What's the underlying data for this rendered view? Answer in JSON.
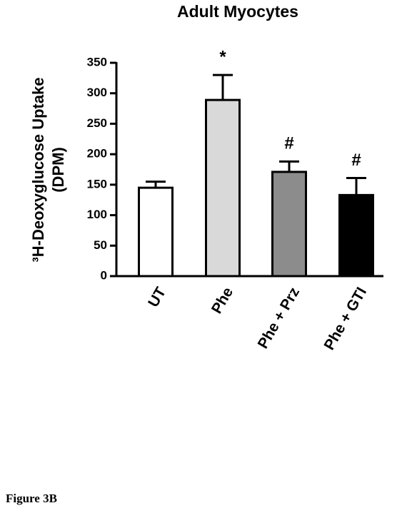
{
  "chart_data": {
    "type": "bar",
    "title": "Adult Myocytes",
    "y_label": [
      "³H-Deoxyglucose  Uptake",
      "(DPM)"
    ],
    "categories": [
      "UT",
      "Phe",
      "Phe + Prz",
      "Phe + GTI"
    ],
    "values": [
      145,
      289,
      171,
      133
    ],
    "errors": [
      10,
      41,
      17,
      28
    ],
    "annotations": [
      null,
      "*",
      "#",
      "#"
    ],
    "colors": [
      "#ffffff",
      "#d9d9d9",
      "#8c8c8c",
      "#000000"
    ],
    "edgecolor": "#000000",
    "ylim": [
      0,
      350
    ],
    "yticks": [
      0,
      50,
      100,
      150,
      200,
      250,
      300,
      350
    ]
  },
  "figure_label": "Figure 3B"
}
